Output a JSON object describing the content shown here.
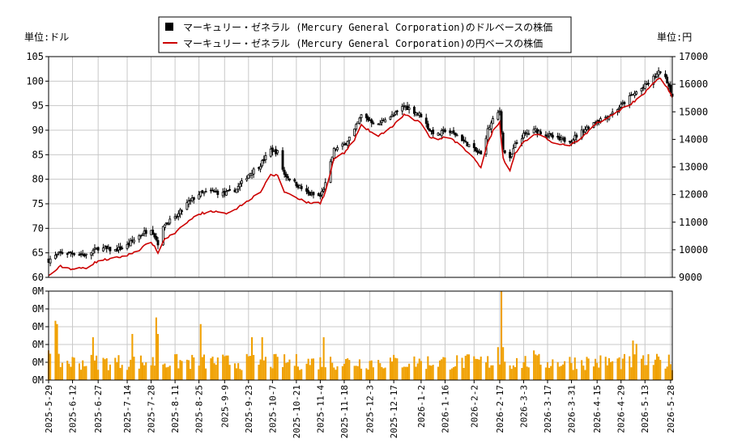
{
  "chart_data": {
    "type": "candlestick",
    "legend": {
      "position": "top-center",
      "entries": [
        {
          "label": "マーキュリー・ゼネラル (Mercury General Corporation)のドルベースの株価",
          "color": "#000000"
        },
        {
          "label": "マーキュリー・ゼネラル (Mercury General Corporation)の円ベースの株価",
          "color": "#cc0000"
        }
      ]
    },
    "left_unit_label": "単位:ドル",
    "right_unit_label": "単位:円",
    "price_axis_usd": {
      "min": 60,
      "max": 105,
      "ticks": [
        60,
        65,
        70,
        75,
        80,
        85,
        90,
        95,
        100,
        105
      ]
    },
    "price_axis_jpy": {
      "min": 9000,
      "max": 17000,
      "ticks": [
        9000,
        10000,
        11000,
        12000,
        13000,
        14000,
        15000,
        16000,
        17000
      ]
    },
    "volume_axis": {
      "tick_labels": [
        "0M",
        "0M",
        "0M",
        "0M",
        "0M",
        "0M"
      ]
    },
    "grid": true,
    "x_start": "2025-05-29",
    "x_end": "2026-05-29",
    "x_ticks": [
      "2025-5-29",
      "2025-6-12",
      "2025-6-27",
      "2025-7-14",
      "2025-7-28",
      "2025-8-11",
      "2025-8-25",
      "2025-9-9",
      "2025-9-23",
      "2025-10-7",
      "2025-10-21",
      "2025-11-4",
      "2025-11-18",
      "2025-12-3",
      "2025-12-17",
      "2026-1-2",
      "2026-1-16",
      "2026-2-2",
      "2026-2-17",
      "2026-3-3",
      "2026-3-17",
      "2026-3-31",
      "2026-4-15",
      "2026-4-29",
      "2026-5-13",
      "2026-5-28"
    ],
    "usd_close_anchors": [
      [
        "2025-05-29",
        63.5
      ],
      [
        "2025-06-05",
        65
      ],
      [
        "2025-06-12",
        65
      ],
      [
        "2025-06-20",
        64.5
      ],
      [
        "2025-06-27",
        66
      ],
      [
        "2025-07-07",
        65.5
      ],
      [
        "2025-07-14",
        66.5
      ],
      [
        "2025-07-21",
        68.5
      ],
      [
        "2025-07-28",
        70
      ],
      [
        "2025-08-01",
        67
      ],
      [
        "2025-08-05",
        71
      ],
      [
        "2025-08-11",
        72
      ],
      [
        "2025-08-18",
        75
      ],
      [
        "2025-08-25",
        77
      ],
      [
        "2025-09-02",
        77.5
      ],
      [
        "2025-09-09",
        77
      ],
      [
        "2025-09-16",
        78
      ],
      [
        "2025-09-23",
        81
      ],
      [
        "2025-09-30",
        83
      ],
      [
        "2025-10-06",
        86
      ],
      [
        "2025-10-10",
        85.5
      ],
      [
        "2025-10-14",
        81
      ],
      [
        "2025-10-21",
        79
      ],
      [
        "2025-10-28",
        77
      ],
      [
        "2025-11-04",
        76.5
      ],
      [
        "2025-11-07",
        79
      ],
      [
        "2025-11-12",
        86
      ],
      [
        "2025-11-18",
        87
      ],
      [
        "2025-11-24",
        90
      ],
      [
        "2025-11-28",
        93
      ],
      [
        "2025-12-03",
        92
      ],
      [
        "2025-12-08",
        91
      ],
      [
        "2025-12-12",
        92.5
      ],
      [
        "2025-12-17",
        93
      ],
      [
        "2025-12-23",
        95
      ],
      [
        "2026-01-02",
        93
      ],
      [
        "2026-01-07",
        90
      ],
      [
        "2026-01-12",
        89
      ],
      [
        "2026-01-16",
        90
      ],
      [
        "2026-01-23",
        89
      ],
      [
        "2026-02-02",
        86
      ],
      [
        "2026-02-06",
        85
      ],
      [
        "2026-02-10",
        90
      ],
      [
        "2026-02-13",
        92
      ],
      [
        "2026-02-17",
        94
      ],
      [
        "2026-02-19",
        86
      ],
      [
        "2026-02-23",
        84
      ],
      [
        "2026-02-26",
        87
      ],
      [
        "2026-03-03",
        89
      ],
      [
        "2026-03-10",
        90
      ],
      [
        "2026-03-17",
        89
      ],
      [
        "2026-03-24",
        88
      ],
      [
        "2026-03-31",
        88
      ],
      [
        "2026-04-07",
        90
      ],
      [
        "2026-04-15",
        92
      ],
      [
        "2026-04-22",
        93
      ],
      [
        "2026-04-29",
        95
      ],
      [
        "2026-05-05",
        97
      ],
      [
        "2026-05-13",
        99
      ],
      [
        "2026-05-19",
        101
      ],
      [
        "2026-05-22",
        102
      ],
      [
        "2026-05-26",
        100
      ],
      [
        "2026-05-29",
        97
      ]
    ],
    "jpy_close_anchors": [
      [
        "2025-05-29",
        9050
      ],
      [
        "2025-06-05",
        9400
      ],
      [
        "2025-06-12",
        9300
      ],
      [
        "2025-06-20",
        9350
      ],
      [
        "2025-06-27",
        9600
      ],
      [
        "2025-07-07",
        9700
      ],
      [
        "2025-07-14",
        9800
      ],
      [
        "2025-07-21",
        10000
      ],
      [
        "2025-07-28",
        10300
      ],
      [
        "2025-08-01",
        9900
      ],
      [
        "2025-08-05",
        10400
      ],
      [
        "2025-08-11",
        10600
      ],
      [
        "2025-08-18",
        11000
      ],
      [
        "2025-08-25",
        11300
      ],
      [
        "2025-09-02",
        11400
      ],
      [
        "2025-09-09",
        11300
      ],
      [
        "2025-09-16",
        11500
      ],
      [
        "2025-09-23",
        11800
      ],
      [
        "2025-09-30",
        12100
      ],
      [
        "2025-10-06",
        12700
      ],
      [
        "2025-10-10",
        12700
      ],
      [
        "2025-10-14",
        12100
      ],
      [
        "2025-10-21",
        11900
      ],
      [
        "2025-10-28",
        11700
      ],
      [
        "2025-11-04",
        11700
      ],
      [
        "2025-11-07",
        12100
      ],
      [
        "2025-11-12",
        13300
      ],
      [
        "2025-11-18",
        13500
      ],
      [
        "2025-11-24",
        14000
      ],
      [
        "2025-11-28",
        14500
      ],
      [
        "2025-12-03",
        14300
      ],
      [
        "2025-12-08",
        14100
      ],
      [
        "2025-12-12",
        14300
      ],
      [
        "2025-12-17",
        14500
      ],
      [
        "2025-12-23",
        14900
      ],
      [
        "2026-01-02",
        14600
      ],
      [
        "2026-01-07",
        14100
      ],
      [
        "2026-01-12",
        14000
      ],
      [
        "2026-01-16",
        14100
      ],
      [
        "2026-01-23",
        13900
      ],
      [
        "2026-02-02",
        13300
      ],
      [
        "2026-02-06",
        13000
      ],
      [
        "2026-02-10",
        13900
      ],
      [
        "2026-02-13",
        14300
      ],
      [
        "2026-02-17",
        14600
      ],
      [
        "2026-02-19",
        13300
      ],
      [
        "2026-02-23",
        12900
      ],
      [
        "2026-02-26",
        13500
      ],
      [
        "2026-03-03",
        13900
      ],
      [
        "2026-03-10",
        14200
      ],
      [
        "2026-03-17",
        14000
      ],
      [
        "2026-03-24",
        13800
      ],
      [
        "2026-03-31",
        13800
      ],
      [
        "2026-04-07",
        14100
      ],
      [
        "2026-04-15",
        14600
      ],
      [
        "2026-04-22",
        14800
      ],
      [
        "2026-04-29",
        15100
      ],
      [
        "2026-05-05",
        15300
      ],
      [
        "2026-05-13",
        15700
      ],
      [
        "2026-05-19",
        16100
      ],
      [
        "2026-05-22",
        16200
      ],
      [
        "2026-05-26",
        15900
      ],
      [
        "2026-05-29",
        15500
      ]
    ],
    "volume_spikes": [
      [
        "2025-05-29",
        0.45
      ],
      [
        "2025-06-02",
        0.9
      ],
      [
        "2025-06-03",
        0.85
      ],
      [
        "2025-06-24",
        0.65
      ],
      [
        "2025-07-17",
        0.7
      ],
      [
        "2025-07-31",
        0.95
      ],
      [
        "2025-08-01",
        0.7
      ],
      [
        "2025-08-26",
        0.85
      ],
      [
        "2025-09-25",
        0.65
      ],
      [
        "2025-10-01",
        0.65
      ],
      [
        "2025-11-06",
        0.65
      ],
      [
        "2026-02-16",
        0.5
      ],
      [
        "2026-02-18",
        1.35
      ],
      [
        "2026-02-19",
        0.5
      ],
      [
        "2026-03-09",
        0.45
      ],
      [
        "2026-05-06",
        0.6
      ],
      [
        "2026-05-08",
        0.55
      ]
    ]
  }
}
